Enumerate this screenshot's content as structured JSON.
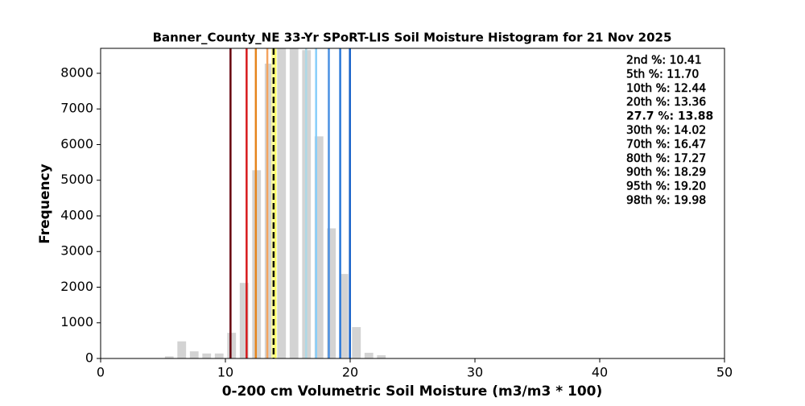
{
  "chart_data": {
    "type": "histogram",
    "title": "Banner_County_NE 33-Yr SPoRT-LIS Soil Moisture Histogram for 21 Nov 2025",
    "x_label": "0-200 cm Volumetric Soil Moisture (m3/m3 * 100)",
    "y_label": "Frequency",
    "bins": [
      5,
      6,
      7,
      8,
      9,
      10,
      11,
      12,
      13,
      14,
      15,
      16,
      17,
      18,
      19,
      20,
      21,
      22,
      23
    ],
    "values": [
      60,
      480,
      200,
      140,
      140,
      720,
      2120,
      5280,
      8270,
      8700,
      8700,
      8650,
      6230,
      3650,
      2370,
      880,
      160,
      90
    ],
    "color": "#d3d3d3",
    "xlim": [
      0,
      50
    ],
    "xticks": [
      0,
      10,
      20,
      30,
      40,
      50
    ],
    "ylim": [
      0,
      8700
    ],
    "yticks": [
      0,
      1000,
      2000,
      3000,
      4000,
      5000,
      6000,
      7000,
      8000
    ],
    "percentiles": [
      {
        "label": "2nd %: 10.41",
        "value": 10.41,
        "color": "#67000d"
      },
      {
        "label": "5th %: 11.70",
        "value": 11.7,
        "color": "#d7191c"
      },
      {
        "label": "10th %: 12.44",
        "value": 12.44,
        "color": "#e6851c"
      },
      {
        "label": "20th %: 13.36",
        "value": 13.36,
        "color": "#f4a460"
      },
      {
        "label": "27.7 %: 13.88",
        "value": 13.88,
        "color": "#000000",
        "linestyle": "dashed"
      },
      {
        "label": "30th %: 14.02",
        "value": 14.02,
        "color": "#ffff66"
      },
      {
        "label": "70th %: 16.47",
        "value": 16.47,
        "color": "#add8e6"
      },
      {
        "label": "80th %: 17.27",
        "value": 17.27,
        "color": "#87cefa"
      },
      {
        "label": "90th %: 18.29",
        "value": 18.29,
        "color": "#4a90e2"
      },
      {
        "label": "95th %: 19.20",
        "value": 19.2,
        "color": "#2a78d8"
      },
      {
        "label": "98th %: 19.98",
        "value": 19.98,
        "color": "#1560c8"
      }
    ]
  }
}
